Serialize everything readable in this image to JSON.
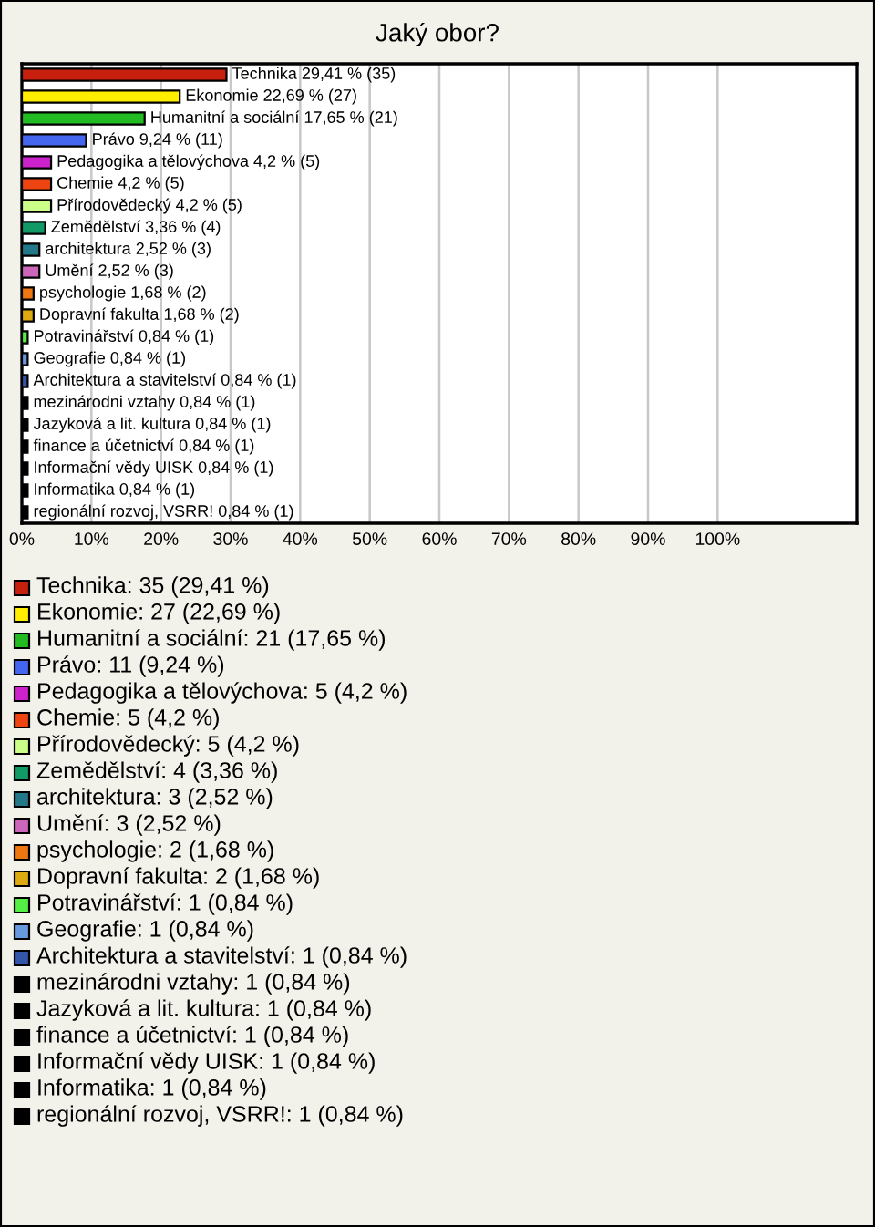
{
  "chart_data": {
    "type": "bar",
    "orientation": "horizontal",
    "title": "Jaký obor?",
    "categories": [
      null,
      null,
      null,
      null,
      null,
      null,
      null,
      null,
      null,
      null,
      null,
      null,
      null,
      null,
      null,
      null,
      null,
      null,
      null,
      null,
      null
    ],
    "values": [
      29.41,
      22.69,
      17.65,
      9.24,
      4.2,
      4.2,
      4.2,
      3.36,
      2.52,
      2.52,
      1.68,
      1.68,
      0.84,
      0.84,
      0.84,
      0.84,
      0.84,
      0.84,
      0.84,
      0.84,
      0.84
    ],
    "colors": [
      "#c8200e",
      "#ffee00",
      "#22bb22",
      "#4466ee",
      "#cc22cc",
      "#ee4411",
      "#ccff88",
      "#119966",
      "#227788",
      "#cc66bb",
      "#ee7711",
      "#ddaa11",
      "#55ee44",
      "#6699dd",
      "#3355aa",
      "#000000",
      "#000000",
      "#000000",
      "#000000",
      "#000000",
      "#000000"
    ],
    "value_labels": [
      "Technika 29,41 % (35)",
      "Ekonomie 22,69 % (27)",
      "Humanitní a sociální 17,65 % (21)",
      "Právo 9,24 % (11)",
      "Pedagogika a tělovýchova 4,2 % (5)",
      "Chemie 4,2 % (5)",
      "Přírodovědecký 4,2 % (5)",
      "Zemědělství 3,36 % (4)",
      "architektura 2,52 % (3)",
      "Umění 2,52 % (3)",
      "psychologie 1,68 % (2)",
      "Dopravní fakulta 1,68 % (2)",
      "Potravinářství 0,84 % (1)",
      "Geografie 0,84 % (1)",
      "Architektura a stavitelství 0,84 % (1)",
      "mezinárodni vztahy 0,84 % (1)",
      "Jazyková a lit. kultura 0,84 % (1)",
      "finance a účetnictví 0,84 % (1)",
      "Informační vědy UISK 0,84 % (1)",
      "Informatika 0,84 % (1)",
      "regionální rozvoj, VSRR! 0,84 % (1)"
    ],
    "annotations": [
      "Technika: 35 (29,41 %)",
      "Ekonomie: 27 (22,69 %)",
      "Humanitní a sociální: 21 (17,65 %)",
      "Právo: 11 (9,24 %)",
      "Pedagogika a tělovýchova: 5 (4,2 %)",
      "Chemie: 5 (4,2 %)",
      "Přírodovědecký: 5 (4,2 %)",
      "Zemědělství: 4 (3,36 %)",
      "architektura: 3 (2,52 %)",
      "Umění: 3 (2,52 %)",
      "psychologie: 2 (1,68 %)",
      "Dopravní fakulta: 2 (1,68 %)",
      "Potravinářství: 1 (0,84 %)",
      "Geografie: 1 (0,84 %)",
      "Architektura a stavitelství: 1 (0,84 %)",
      "mezinárodni vztahy: 1 (0,84 %)",
      "Jazyková a lit. kultura: 1 (0,84 %)",
      "finance a účetnictví: 1 (0,84 %)",
      "Informační vědy UISK: 1 (0,84 %)",
      "Informatika: 1 (0,84 %)",
      "regionální rozvoj, VSRR!: 1 (0,84 %)"
    ],
    "xlim": [
      0,
      120
    ],
    "xticks": [
      {
        "value": 0,
        "label": "0%"
      },
      {
        "value": 10,
        "label": "10%"
      },
      {
        "value": 20,
        "label": "20%"
      },
      {
        "value": 30,
        "label": "30%"
      },
      {
        "value": 40,
        "label": "40%"
      },
      {
        "value": 50,
        "label": "50%"
      },
      {
        "value": 60,
        "label": "60%"
      },
      {
        "value": 70,
        "label": "70%"
      },
      {
        "value": 80,
        "label": "80%"
      },
      {
        "value": 90,
        "label": "90%"
      },
      {
        "value": 100,
        "label": "100%"
      }
    ],
    "grid": "x",
    "tick_labels": "x"
  }
}
